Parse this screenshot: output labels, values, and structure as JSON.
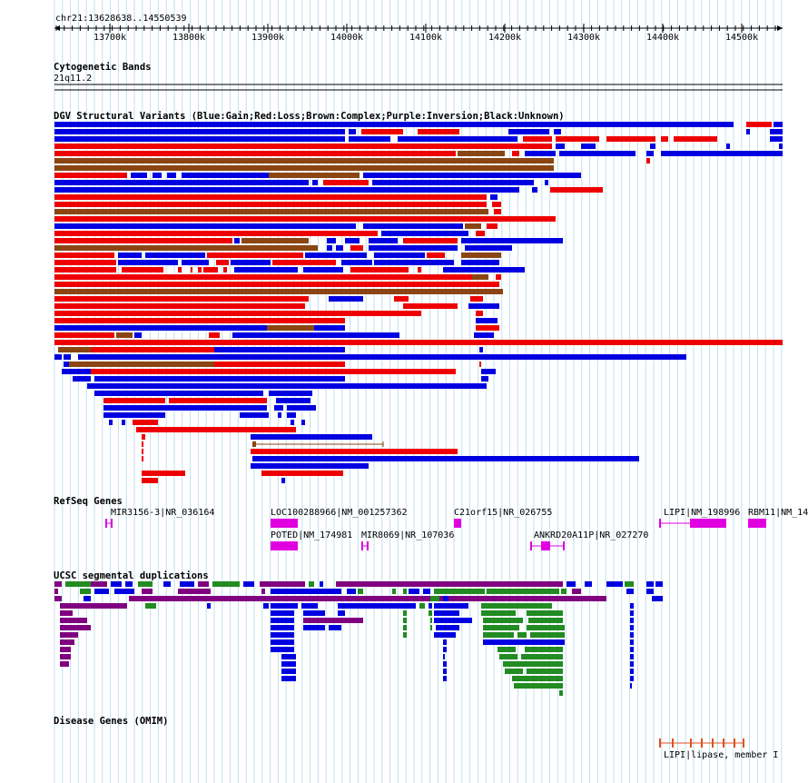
{
  "ruler": {
    "position": "chr21:13628638..14550539",
    "ticks": [
      "13700k",
      "13800k",
      "13900k",
      "14000k",
      "14100k",
      "14200k",
      "14300k",
      "14400k",
      "14500k"
    ]
  },
  "cytoband": {
    "title": "Cytogenetic Bands",
    "band": "21q11.2"
  },
  "dgv": {
    "title": "DGV Structural Variants (Blue:Gain;Red:Loss;Brown:Complex;Purple:Inversion;Black:Unknown)",
    "colors": {
      "gain": "#0000e0",
      "loss": "#ee0000",
      "complex": "#8b4513",
      "inversion": "#800080"
    }
  },
  "refseq": {
    "title": "RefSeq Genes",
    "genes": [
      {
        "name": "MIR3156-3|NR_036164"
      },
      {
        "name": "LOC100288966|NM_001257362"
      },
      {
        "name": "C21orf15|NR_026755"
      },
      {
        "name": "LIPI|NM_198996"
      },
      {
        "name": "RBM11|NM_14"
      },
      {
        "name": "POTED|NM_174981"
      },
      {
        "name": "MIR8069|NR_107036"
      },
      {
        "name": "ANKRD20A11P|NR_027270"
      }
    ],
    "color": "#e000e0"
  },
  "segdup": {
    "title": "UCSC segmental duplications",
    "colors": {
      "blue": "#0000e0",
      "purple": "#800080",
      "green": "#228b22"
    }
  },
  "omim": {
    "title": "Disease Genes (OMIM)",
    "gene": "LIPI|lipase, member I",
    "color": "#e05020"
  }
}
